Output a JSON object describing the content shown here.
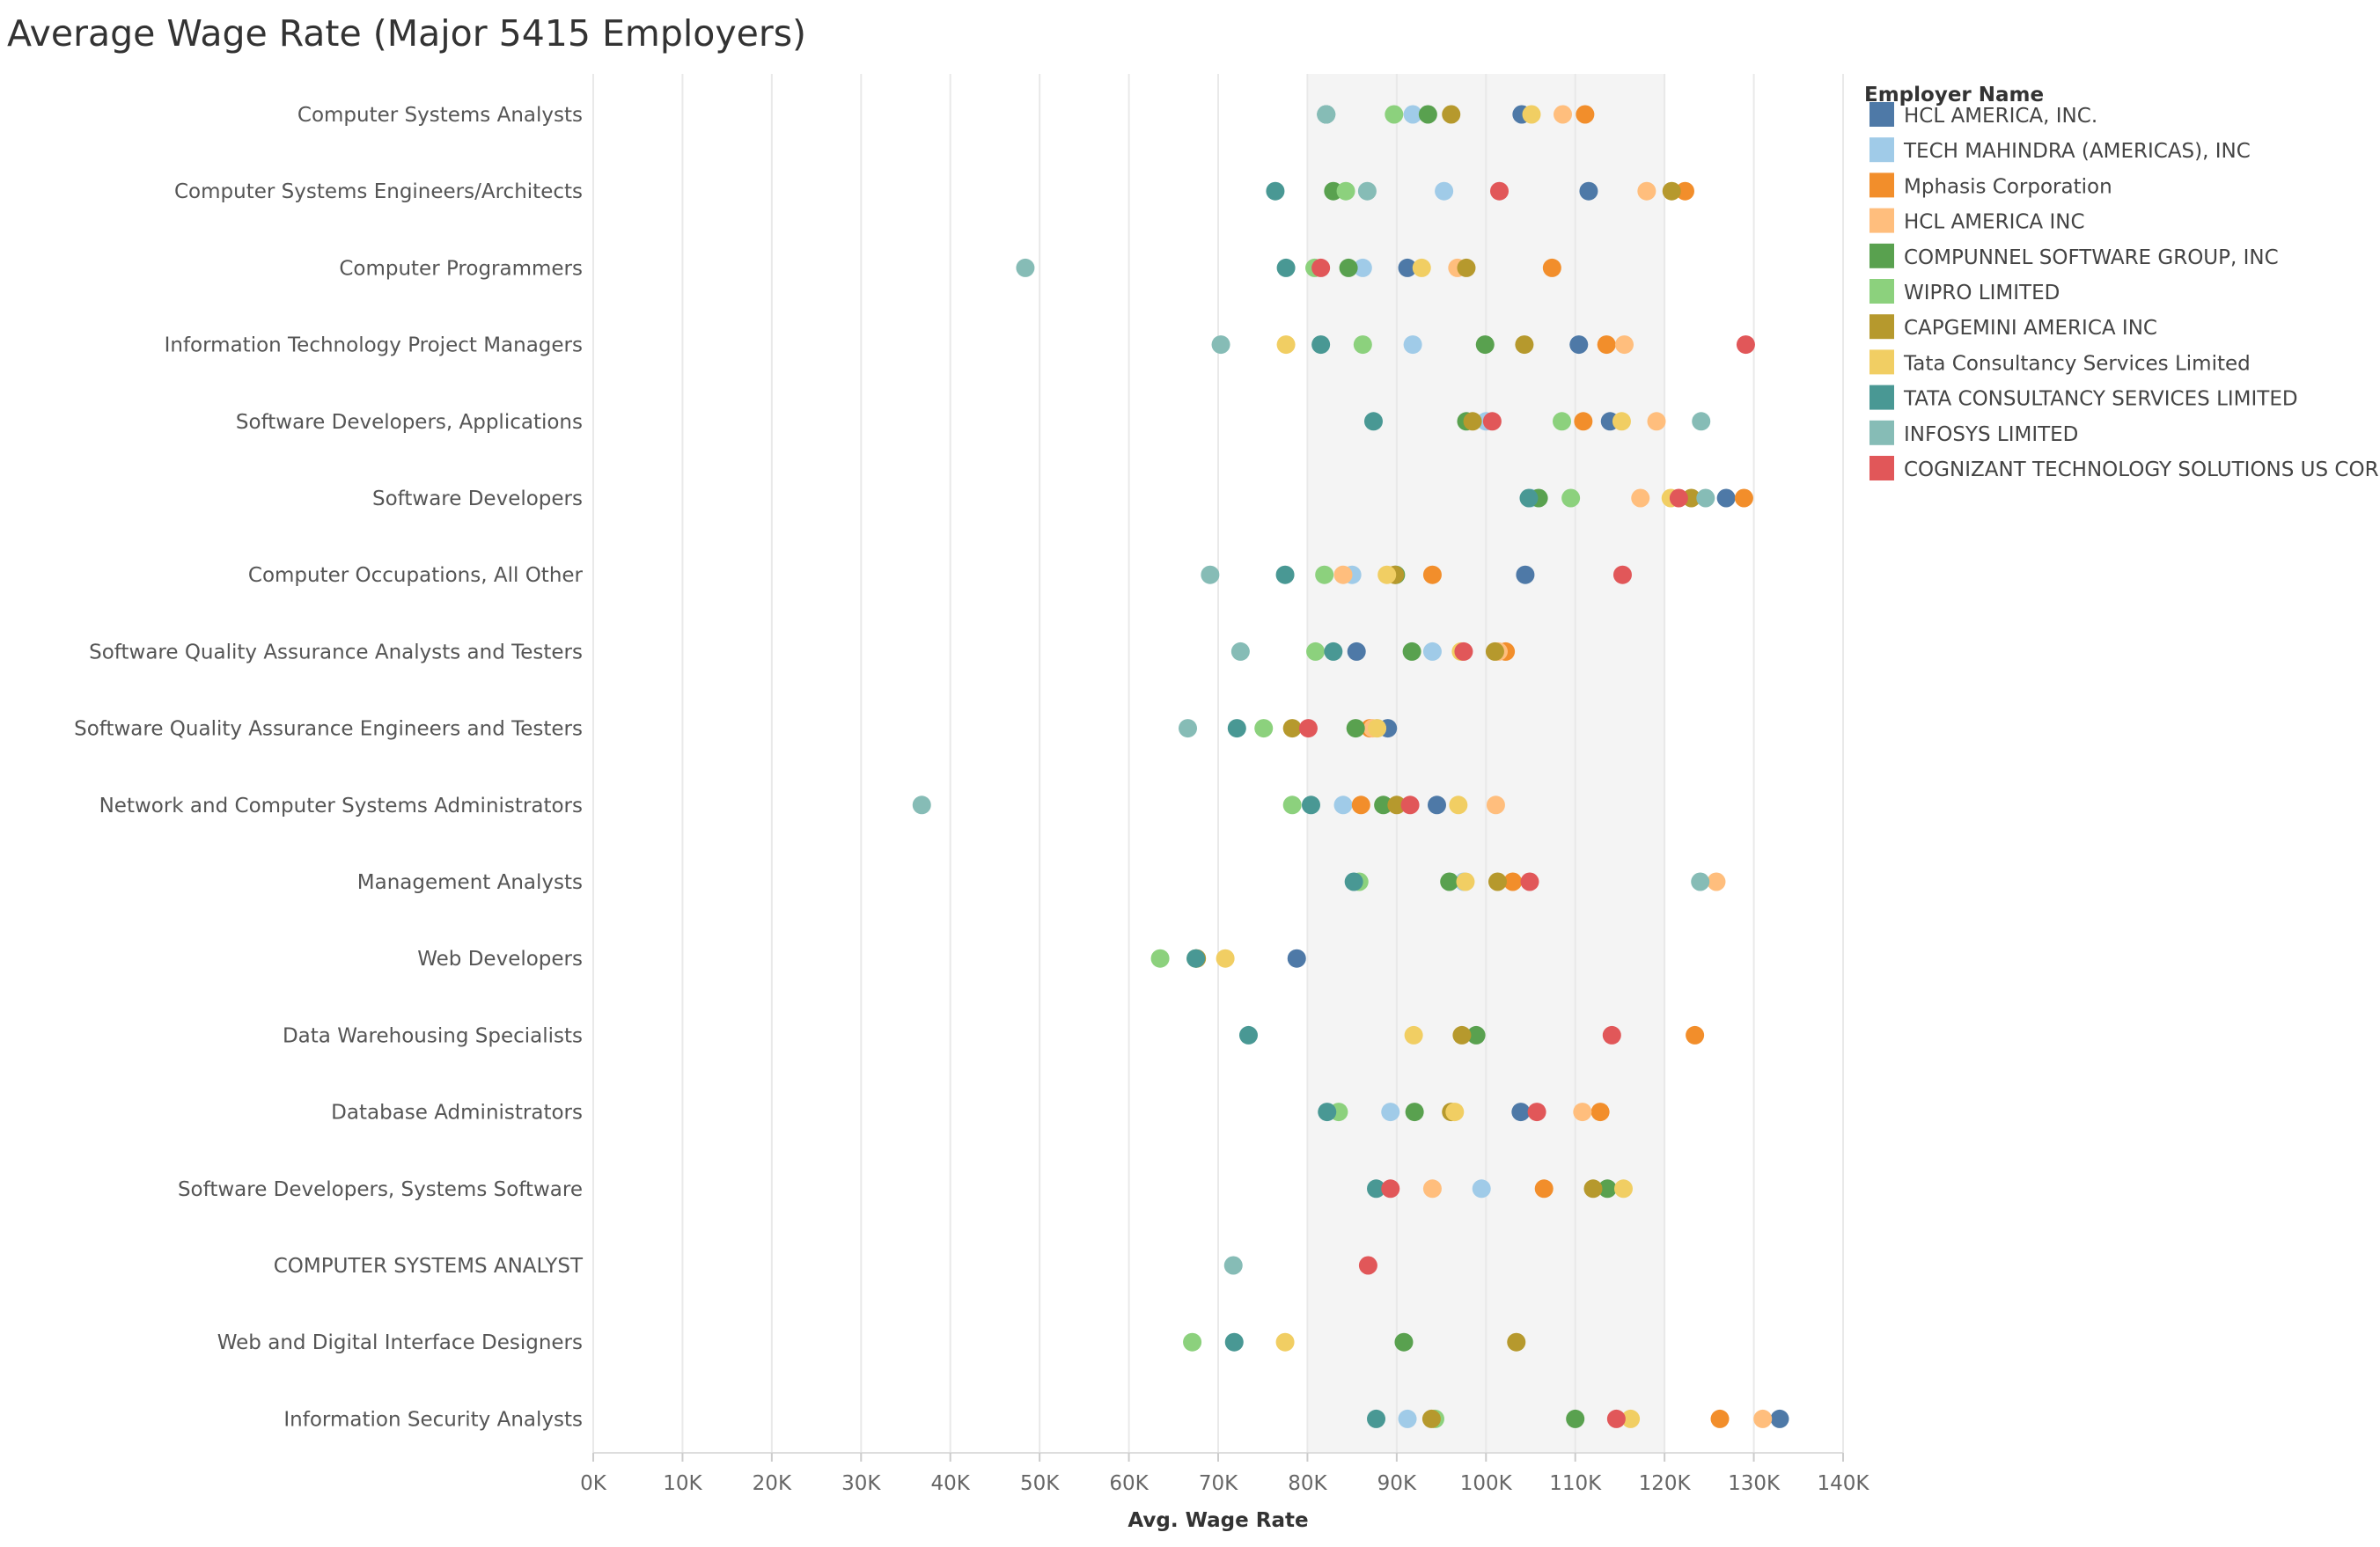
{
  "chart_data": {
    "type": "scatter",
    "title": "Average Wage Rate (Major 5415 Employers)",
    "xlabel": "Avg. Wage Rate",
    "ylabel": "",
    "xlim": [
      0,
      140000
    ],
    "x_ticks": [
      {
        "value": 0,
        "label": "0K"
      },
      {
        "value": 10000,
        "label": "10K"
      },
      {
        "value": 20000,
        "label": "20K"
      },
      {
        "value": 30000,
        "label": "30K"
      },
      {
        "value": 40000,
        "label": "40K"
      },
      {
        "value": 50000,
        "label": "50K"
      },
      {
        "value": 60000,
        "label": "60K"
      },
      {
        "value": 70000,
        "label": "70K"
      },
      {
        "value": 80000,
        "label": "80K"
      },
      {
        "value": 90000,
        "label": "90K"
      },
      {
        "value": 100000,
        "label": "100K"
      },
      {
        "value": 110000,
        "label": "110K"
      },
      {
        "value": 120000,
        "label": "120K"
      },
      {
        "value": 130000,
        "label": "130K"
      },
      {
        "value": 140000,
        "label": "140K"
      }
    ],
    "highlight_band": [
      80000,
      120000
    ],
    "categories": [
      "Computer Systems Analysts",
      "Computer Systems Engineers/Architects",
      "Computer Programmers",
      "Information Technology Project Managers",
      "Software Developers, Applications",
      "Software Developers",
      "Computer Occupations, All Other",
      "Software Quality Assurance Analysts and Testers",
      "Software Quality Assurance Engineers and Testers",
      "Network and Computer Systems Administrators",
      "Management Analysts",
      "Web Developers",
      "Data Warehousing Specialists",
      "Database Administrators",
      "Software Developers, Systems Software",
      "COMPUTER SYSTEMS ANALYST",
      "Web and Digital Interface Designers",
      "Information Security Analysts"
    ],
    "legend_title": "Employer Name",
    "legend_position": "right",
    "series": [
      {
        "name": "HCL AMERICA, INC.",
        "color": "#4e79a7",
        "values": [
          104000,
          111500,
          91200,
          110400,
          113900,
          126900,
          104400,
          85500,
          89000,
          94500,
          null,
          78800,
          null,
          103900,
          null,
          null,
          null,
          132900
        ]
      },
      {
        "name": "TECH MAHINDRA (AMERICAS), INC",
        "color": "#a0cbe8",
        "values": [
          91800,
          95300,
          86200,
          91800,
          100000,
          105000,
          85000,
          94000,
          87800,
          84000,
          97500,
          null,
          null,
          89300,
          99500,
          null,
          null,
          91200
        ]
      },
      {
        "name": "Mphasis Corporation",
        "color": "#f28e2b",
        "values": [
          111100,
          122300,
          107400,
          113500,
          110900,
          128900,
          94000,
          102200,
          87000,
          86000,
          103000,
          null,
          123400,
          112800,
          106500,
          null,
          null,
          126200
        ]
      },
      {
        "name": "HCL AMERICA INC",
        "color": "#ffbe7d",
        "values": [
          108600,
          118000,
          96800,
          115500,
          119100,
          117300,
          84000,
          101400,
          87300,
          101100,
          125800,
          null,
          null,
          110800,
          94000,
          null,
          null,
          131000
        ]
      },
      {
        "name": "COMPUNNEL SOFTWARE GROUP, INC",
        "color": "#59a14f",
        "values": [
          93500,
          82900,
          84600,
          99900,
          97800,
          105900,
          89900,
          91700,
          85400,
          88500,
          95900,
          67500,
          98900,
          92000,
          113600,
          null,
          90800,
          110000
        ]
      },
      {
        "name": "WIPRO LIMITED",
        "color": "#8cd17d",
        "values": [
          89700,
          84300,
          80800,
          86200,
          108500,
          109500,
          81900,
          80900,
          75100,
          78300,
          85800,
          63500,
          null,
          83500,
          null,
          null,
          67100,
          94300
        ]
      },
      {
        "name": "CAPGEMINI AMERICA INC",
        "color": "#b6992d",
        "values": [
          96100,
          120800,
          97800,
          104300,
          98500,
          123000,
          89800,
          101000,
          78300,
          90000,
          101300,
          67600,
          97300,
          96100,
          112000,
          null,
          103400,
          93900
        ]
      },
      {
        "name": "Tata Consultancy Services Limited",
        "color": "#f1ce63",
        "values": [
          105100,
          null,
          92800,
          77600,
          115200,
          120700,
          88900,
          97200,
          87800,
          96900,
          97700,
          70800,
          91900,
          96500,
          115400,
          null,
          77500,
          116200
        ]
      },
      {
        "name": "TATA CONSULTANCY SERVICES LIMITED",
        "color": "#499894",
        "values": [
          82100,
          76400,
          77600,
          81500,
          87400,
          104800,
          77500,
          82900,
          72100,
          80400,
          85200,
          67500,
          73400,
          82200,
          87700,
          null,
          71800,
          87700
        ]
      },
      {
        "name": "INFOSYS LIMITED",
        "color": "#86bcb6",
        "values": [
          82100,
          86700,
          48400,
          70300,
          124100,
          124600,
          69100,
          72500,
          66600,
          36800,
          124000,
          null,
          null,
          null,
          null,
          71700,
          null,
          null
        ]
      },
      {
        "name": "COGNIZANT TECHNOLOGY SOLUTIONS US CORP",
        "color": "#e15759",
        "values": [
          null,
          101500,
          81500,
          129100,
          100700,
          121600,
          115300,
          97500,
          80100,
          91500,
          104900,
          null,
          114100,
          105700,
          89300,
          86800,
          null,
          114600
        ]
      }
    ]
  }
}
